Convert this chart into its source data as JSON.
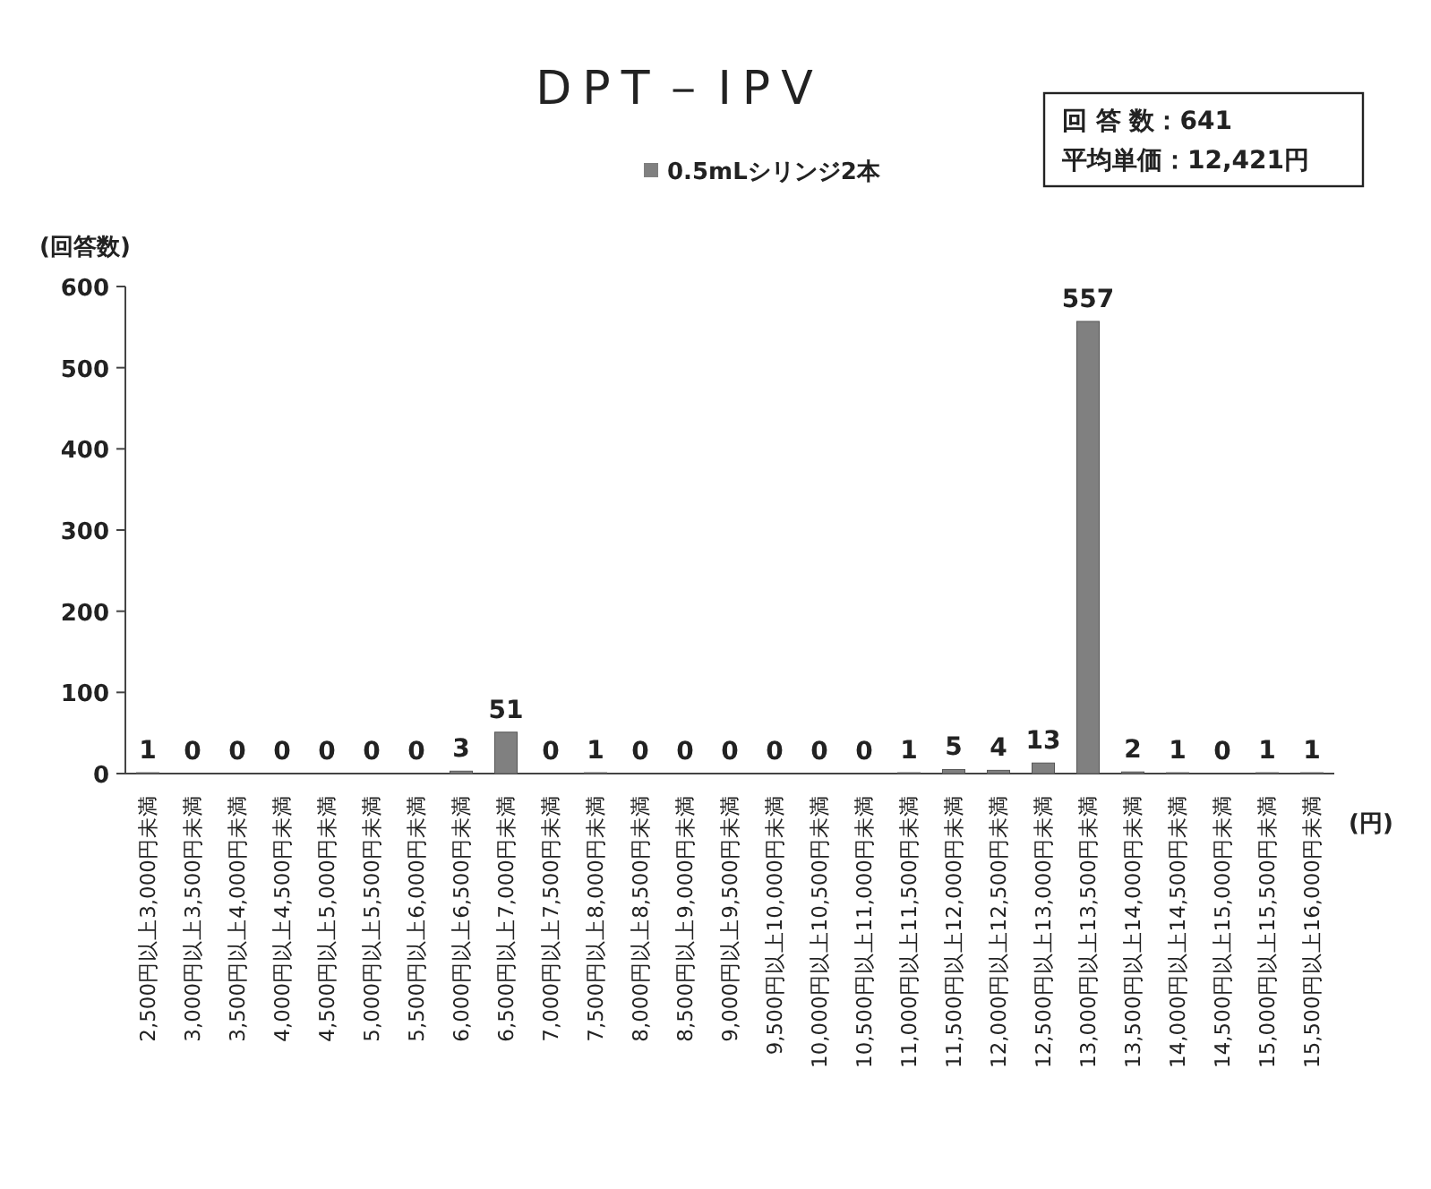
{
  "chart_data": {
    "type": "bar",
    "title": "DPT－IPV",
    "ylabel": "(回答数)",
    "xlabel": "(円)",
    "categories": [
      "2,500円以上3,000円未満",
      "3,000円以上3,500円未満",
      "3,500円以上4,000円未満",
      "4,000円以上4,500円未満",
      "4,500円以上5,000円未満",
      "5,000円以上5,500円未満",
      "5,500円以上6,000円未満",
      "6,000円以上6,500円未満",
      "6,500円以上7,000円未満",
      "7,000円以上7,500円未満",
      "7,500円以上8,000円未満",
      "8,000円以上8,500円未満",
      "8,500円以上9,000円未満",
      "9,000円以上9,500円未満",
      "9,500円以上10,000円未満",
      "10,000円以上10,500円未満",
      "10,500円以上11,000円未満",
      "11,000円以上11,500円未満",
      "11,500円以上12,000円未満",
      "12,000円以上12,500円未満",
      "12,500円以上13,000円未満",
      "13,000円以上13,500円未満",
      "13,500円以上14,000円未満",
      "14,000円以上14,500円未満",
      "14,500円以上15,000円未満",
      "15,000円以上15,500円未満",
      "15,500円以上16,000円未満"
    ],
    "series": [
      {
        "name": "0.5mLシリンジ2本",
        "color": "#808080",
        "values": [
          1,
          0,
          0,
          0,
          0,
          0,
          0,
          3,
          51,
          0,
          1,
          0,
          0,
          0,
          0,
          0,
          0,
          1,
          5,
          4,
          13,
          557,
          2,
          1,
          0,
          1,
          1
        ]
      }
    ],
    "ylim": [
      0,
      600
    ],
    "yticks": [
      0,
      100,
      200,
      300,
      400,
      500,
      600
    ],
    "data_labels": true,
    "legend": "top",
    "annotations": [
      "回 答 数：641",
      "平均単価：12,421円"
    ]
  }
}
